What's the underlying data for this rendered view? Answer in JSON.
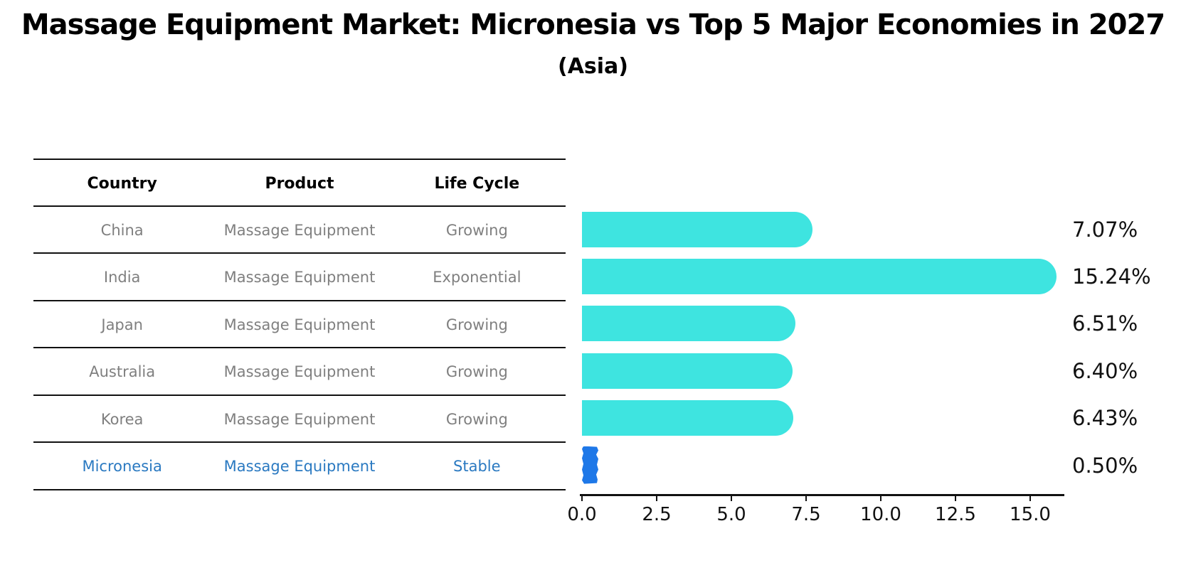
{
  "title": "Massage Equipment Market: Micronesia vs Top 5 Major Economies in 2027",
  "subtitle": "(Asia)",
  "table": {
    "headers": [
      "Country",
      "Product",
      "Life Cycle"
    ],
    "rows": [
      {
        "country": "China",
        "product": "Massage Equipment",
        "life_cycle": "Growing",
        "highlight": false
      },
      {
        "country": "India",
        "product": "Massage Equipment",
        "life_cycle": "Exponential",
        "highlight": false
      },
      {
        "country": "Japan",
        "product": "Massage Equipment",
        "life_cycle": "Growing",
        "highlight": false
      },
      {
        "country": "Australia",
        "product": "Massage Equipment",
        "life_cycle": "Growing",
        "highlight": false
      },
      {
        "country": "Korea",
        "product": "Massage Equipment",
        "life_cycle": "Growing",
        "highlight": false
      },
      {
        "country": "Micronesia",
        "product": "Massage Equipment",
        "life_cycle": "Stable",
        "highlight": true
      }
    ]
  },
  "chart_data": {
    "type": "bar",
    "orientation": "horizontal",
    "title": "Massage Equipment Market: Micronesia vs Top 5 Major Economies in 2027",
    "subtitle": "(Asia)",
    "categories": [
      "China",
      "India",
      "Japan",
      "Australia",
      "Korea",
      "Micronesia"
    ],
    "values": [
      7.07,
      15.24,
      6.51,
      6.4,
      6.43,
      0.5
    ],
    "value_labels": [
      "7.07%",
      "15.24%",
      "6.51%",
      "6.40%",
      "6.43%",
      "0.50%"
    ],
    "xticks": [
      0,
      2.5,
      5,
      7.5,
      10,
      12.5,
      15
    ],
    "xtick_labels": [
      "0.0",
      "2.5",
      "5.0",
      "7.5",
      "10.0",
      "12.5",
      "15.0"
    ],
    "xlim": [
      0,
      16.1
    ],
    "xlabel": "",
    "ylabel": "",
    "grid": false,
    "legend": false,
    "bar_color": "#3ee4e0",
    "highlight_bar_color": "#1e78e8",
    "highlight_index": 5
  },
  "colors": {
    "row_text": "#7f7f7f",
    "highlight_text": "#2a79c1",
    "header_text": "#000000",
    "axis": "#111111"
  }
}
